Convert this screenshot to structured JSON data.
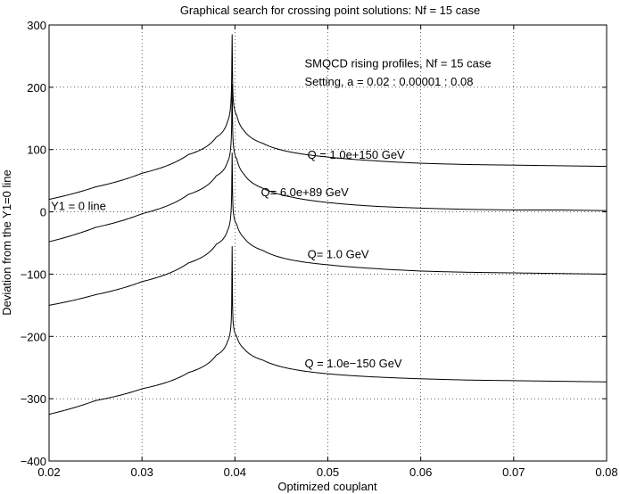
{
  "chart_data": {
    "type": "line",
    "title": "Graphical search for crossing point solutions: Nf = 15 case",
    "xlabel": "Optimized couplant",
    "ylabel": "Deviation from the Y1=0 line",
    "xlim": [
      0.02,
      0.08
    ],
    "ylim": [
      -400,
      300
    ],
    "xticks": [
      0.02,
      0.03,
      0.04,
      0.05,
      0.06,
      0.07,
      0.08
    ],
    "yticks": [
      -400,
      -300,
      -200,
      -100,
      0,
      100,
      200,
      300
    ],
    "xtick_labels": [
      "0.02",
      "0.03",
      "0.04",
      "0.05",
      "0.06",
      "0.07",
      "0.08"
    ],
    "ytick_labels": [
      "−400",
      "−300",
      "−200",
      "−100",
      "0",
      "100",
      "200",
      "300"
    ],
    "grid": true,
    "line_color": "#000000",
    "annotations": [
      {
        "text": "SMQCD rising profiles, Nf = 15 case",
        "x": 0.0475,
        "y": 232
      },
      {
        "text": "Setting, a = 0.02 : 0.00001 : 0.08",
        "x": 0.0475,
        "y": 203
      },
      {
        "text": "Q = 1.0e+150 GeV",
        "x": 0.0478,
        "y": 85
      },
      {
        "text": "Q= 6.0e+89 GeV",
        "x": 0.0428,
        "y": 25
      },
      {
        "text": "Y1 = 0 line",
        "x": 0.0202,
        "y": 3
      },
      {
        "text": "Q= 1.0 GeV",
        "x": 0.0478,
        "y": -74
      },
      {
        "text": "Q = 1.0e−150 GeV",
        "x": 0.0475,
        "y": -250
      }
    ],
    "pole_x": 0.0397,
    "series": [
      {
        "x": [
          0.02,
          0.025,
          0.03,
          0.035,
          0.038,
          0.0392,
          0.0396,
          0.03965,
          0.0397,
          0.03975,
          0.0398,
          0.0402,
          0.041,
          0.043,
          0.046,
          0.05,
          0.055,
          0.06,
          0.065,
          0.07,
          0.075,
          0.08
        ],
        "y": [
          20,
          40,
          62,
          92,
          120,
          145,
          185,
          215,
          285,
          215,
          185,
          155,
          130,
          110,
          96,
          88,
          82,
          78,
          76,
          75,
          74,
          73
        ]
      },
      {
        "x": [
          0.02,
          0.025,
          0.03,
          0.035,
          0.038,
          0.0392,
          0.0396,
          0.03965,
          0.0397,
          0.03975,
          0.0398,
          0.0402,
          0.041,
          0.043,
          0.046,
          0.05,
          0.055,
          0.06,
          0.065,
          0.07,
          0.075,
          0.08
        ],
        "y": [
          -48,
          -25,
          -3,
          28,
          58,
          80,
          115,
          140,
          205,
          140,
          115,
          85,
          60,
          38,
          24,
          15,
          9,
          6,
          4,
          3,
          3,
          2
        ]
      },
      {
        "x": [
          0.02,
          0.025,
          0.03,
          0.035,
          0.038,
          0.0392,
          0.0396,
          0.03965,
          0.0397,
          0.03975,
          0.0398,
          0.0402,
          0.041,
          0.043,
          0.046,
          0.05,
          0.055,
          0.06,
          0.065,
          0.07,
          0.075,
          0.08
        ],
        "y": [
          -150,
          -133,
          -112,
          -82,
          -52,
          -30,
          5,
          30,
          95,
          30,
          5,
          -20,
          -42,
          -62,
          -77,
          -85,
          -91,
          -95,
          -97,
          -98,
          -99,
          -100
        ]
      },
      {
        "x": [
          0.02,
          0.025,
          0.03,
          0.035,
          0.038,
          0.0392,
          0.0396,
          0.03965,
          0.0397,
          0.03975,
          0.0398,
          0.0402,
          0.041,
          0.043,
          0.046,
          0.05,
          0.055,
          0.06,
          0.065,
          0.07,
          0.075,
          0.08
        ],
        "y": [
          -325,
          -303,
          -284,
          -258,
          -230,
          -208,
          -175,
          -150,
          -55,
          -150,
          -175,
          -200,
          -220,
          -238,
          -252,
          -260,
          -265,
          -268,
          -270,
          -271,
          -272,
          -273
        ]
      }
    ]
  }
}
